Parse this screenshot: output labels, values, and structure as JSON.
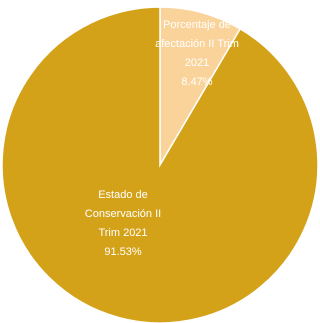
{
  "chart_data": {
    "type": "pie",
    "title": "",
    "slices": [
      {
        "label_lines": [
          "Porcentaje de",
          "afectación II Trim",
          "2021"
        ],
        "value": 8.47,
        "value_label": "8.47%",
        "color": "#FAD39A"
      },
      {
        "label_lines": [
          "Estado de",
          "Conservación II",
          "Trim 2021"
        ],
        "value": 91.53,
        "value_label": "91.53%",
        "color": "#D4A219"
      }
    ],
    "start_angle_deg": 0,
    "direction": "clockwise",
    "slice_border_color": "#ffffff"
  }
}
